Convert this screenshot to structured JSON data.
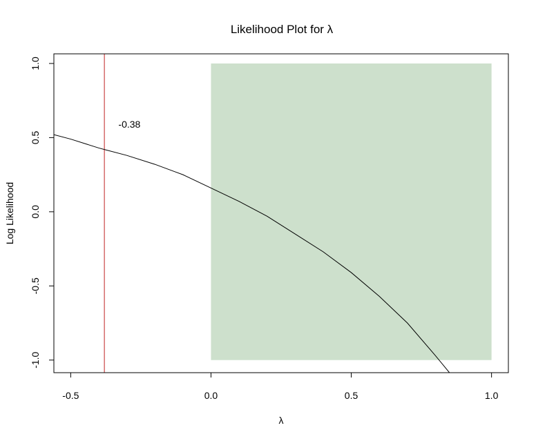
{
  "chart_data": {
    "type": "line",
    "title": "Likelihood Plot for λ",
    "xlabel": "λ",
    "ylabel": "Log Likelihood",
    "xlim": [
      -0.56,
      1.06
    ],
    "ylim": [
      -1.085,
      1.065
    ],
    "x_ticks": [
      -0.5,
      0.0,
      0.5,
      1.0
    ],
    "x_tick_labels": [
      "-0.5",
      "0.0",
      "0.5",
      "1.0"
    ],
    "y_ticks": [
      -1.0,
      -0.5,
      0.0,
      0.5,
      1.0
    ],
    "y_tick_labels": [
      "-1.0",
      "-0.5",
      "0.0",
      "0.5",
      "1.0"
    ],
    "grid": false,
    "series": [
      {
        "x": [
          -0.56,
          -0.5,
          -0.45,
          -0.4,
          -0.38,
          -0.3,
          -0.2,
          -0.1,
          0.0,
          0.1,
          0.2,
          0.3,
          0.4,
          0.5,
          0.6,
          0.7,
          0.8,
          0.85
        ],
        "y": [
          0.52,
          0.49,
          0.46,
          0.43,
          0.42,
          0.38,
          0.32,
          0.25,
          0.16,
          0.07,
          -0.03,
          -0.15,
          -0.27,
          -0.41,
          -0.57,
          -0.75,
          -0.97,
          -1.085
        ],
        "color": "#000000"
      }
    ],
    "region": {
      "x": [
        0.0,
        1.0
      ],
      "y": [
        -1.0,
        1.0
      ],
      "color": "#cde0cc"
    },
    "vline": {
      "x": -0.38,
      "color": "#c02020"
    },
    "annotation": {
      "text": "-0.38",
      "x": -0.33,
      "y": 0.59
    }
  }
}
